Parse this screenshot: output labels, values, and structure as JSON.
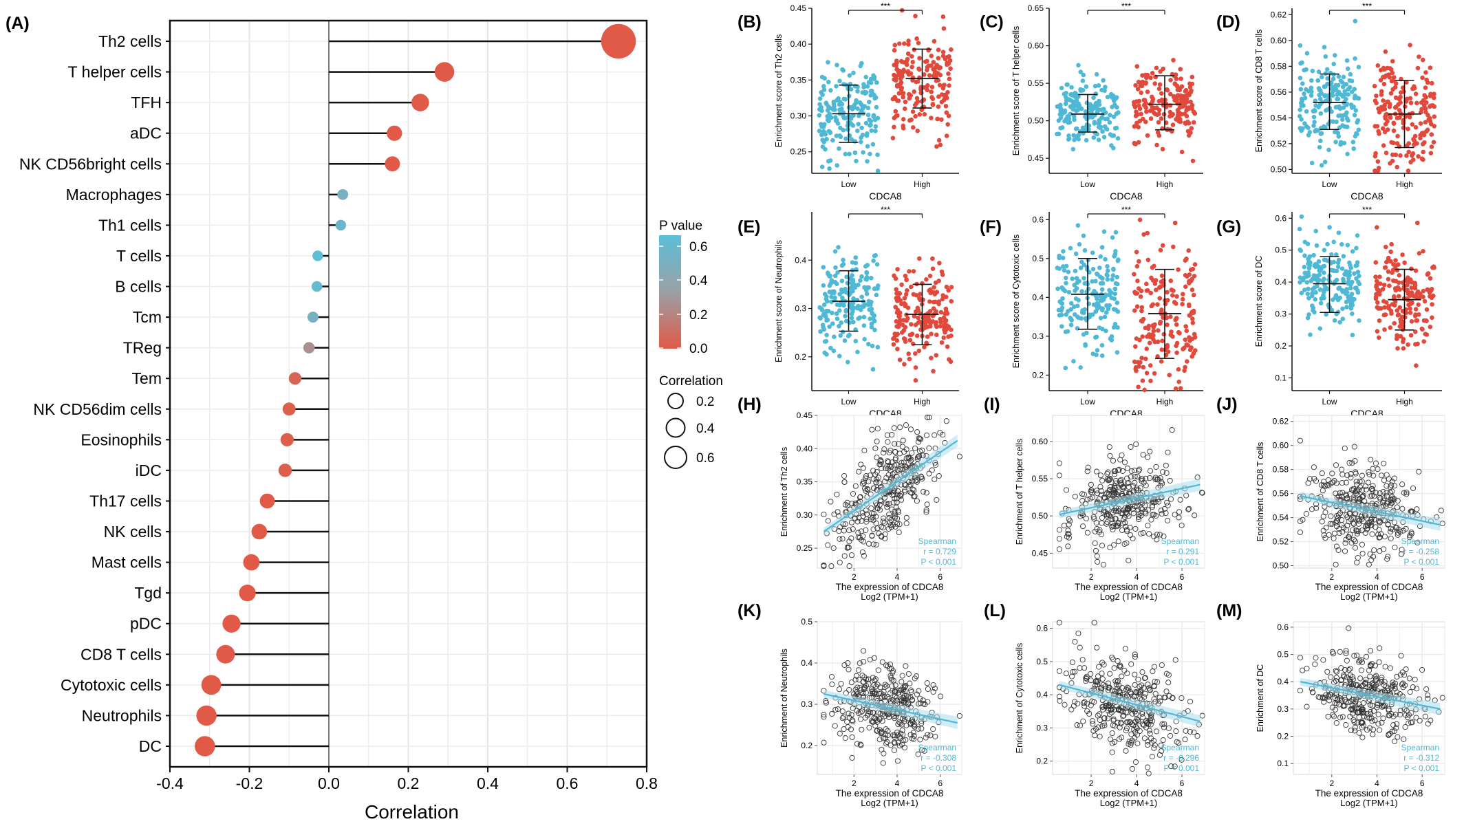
{
  "chart_data": [
    {
      "panel": "(A)",
      "type": "scatter",
      "subtype": "lollipop",
      "xlabel": "Correlation",
      "xlim": [
        -0.4,
        0.8
      ],
      "xticks": [
        -0.4,
        -0.2,
        0.0,
        0.2,
        0.4,
        0.6,
        0.8
      ],
      "xtick_labels": [
        "-0.4",
        "-0.2",
        "0.0",
        "0.2",
        "0.4",
        "0.6",
        "0.8"
      ],
      "categories": [
        "Th2 cells",
        "T helper cells",
        "TFH",
        "aDC",
        "NK CD56bright cells",
        "Macrophages",
        "Th1 cells",
        "T cells",
        "B cells",
        "Tcm",
        "TReg",
        "Tem",
        "NK CD56dim cells",
        "Eosinophils",
        "iDC",
        "Th17 cells",
        "NK cells",
        "Mast cells",
        "Tgd",
        "pDC",
        "CD8 T cells",
        "Cytotoxic cells",
        "Neutrophils",
        "DC"
      ],
      "values": [
        0.729,
        0.291,
        0.23,
        0.165,
        0.16,
        0.035,
        0.03,
        -0.028,
        -0.03,
        -0.04,
        -0.05,
        -0.085,
        -0.1,
        -0.105,
        -0.11,
        -0.155,
        -0.175,
        -0.195,
        -0.205,
        -0.245,
        -0.26,
        -0.296,
        -0.308,
        -0.312
      ],
      "p_values": [
        0.0,
        0.0,
        0.0,
        0.0,
        0.0,
        0.5,
        0.55,
        0.64,
        0.6,
        0.5,
        0.25,
        0.05,
        0.02,
        0.02,
        0.02,
        0.0,
        0.0,
        0.0,
        0.0,
        0.0,
        0.0,
        0.0,
        0.0,
        0.0
      ],
      "legend_pvalue": {
        "title": "P value",
        "tick_labels": [
          "0.6",
          "0.4",
          "0.2",
          "0.0"
        ],
        "colors": [
          "#5bbfd8",
          "#9aa0a6",
          "#e05a47"
        ]
      },
      "legend_size": {
        "title": "Correlation",
        "labels": [
          "0.2",
          "0.4",
          "0.6"
        ]
      }
    },
    {
      "panel": "(B)",
      "type": "scatter",
      "subtype": "group_scatter",
      "ylabel": "Enrichment score of Th2 cells",
      "xlabel": "CDCA8",
      "ylim": [
        0.22,
        0.45
      ],
      "yticks": [
        0.25,
        0.3,
        0.35,
        0.4,
        0.45
      ],
      "ytick_labels": [
        "0.25",
        "0.30",
        "0.35",
        "0.40",
        "0.45"
      ],
      "groups": [
        "Low",
        "High"
      ],
      "significance": "***",
      "series": [
        {
          "name": "Low",
          "color": "#4fb8d4",
          "mean": 0.303,
          "sd_low": 0.263,
          "sd_high": 0.343,
          "spread": 0.033
        },
        {
          "name": "High",
          "color": "#e0493b",
          "mean": 0.352,
          "sd_low": 0.311,
          "sd_high": 0.393,
          "spread": 0.034
        }
      ]
    },
    {
      "panel": "(C)",
      "type": "scatter",
      "subtype": "group_scatter",
      "ylabel": "Enrichment score of T helper cells",
      "xlabel": "CDCA8",
      "ylim": [
        0.43,
        0.65
      ],
      "yticks": [
        0.45,
        0.5,
        0.55,
        0.6,
        0.65
      ],
      "ytick_labels": [
        "0.45",
        "0.50",
        "0.55",
        "0.60",
        "0.65"
      ],
      "groups": [
        "Low",
        "High"
      ],
      "significance": "***",
      "series": [
        {
          "name": "Low",
          "color": "#4fb8d4",
          "mean": 0.509,
          "sd_low": 0.485,
          "sd_high": 0.535,
          "spread": 0.02
        },
        {
          "name": "High",
          "color": "#e0493b",
          "mean": 0.522,
          "sd_low": 0.488,
          "sd_high": 0.56,
          "spread": 0.028
        }
      ]
    },
    {
      "panel": "(D)",
      "type": "scatter",
      "subtype": "group_scatter",
      "ylabel": "Enrichment score of CD8 T cells",
      "xlabel": "CDCA8",
      "ylim": [
        0.497,
        0.625
      ],
      "yticks": [
        0.5,
        0.52,
        0.54,
        0.56,
        0.58,
        0.6,
        0.62
      ],
      "ytick_labels": [
        "0.50",
        "0.52",
        "0.54",
        "0.56",
        "0.58",
        "0.60",
        "0.62"
      ],
      "groups": [
        "Low",
        "High"
      ],
      "significance": "***",
      "series": [
        {
          "name": "Low",
          "color": "#4fb8d4",
          "mean": 0.552,
          "sd_low": 0.531,
          "sd_high": 0.574,
          "spread": 0.018
        },
        {
          "name": "High",
          "color": "#e0493b",
          "mean": 0.543,
          "sd_low": 0.517,
          "sd_high": 0.569,
          "spread": 0.021
        }
      ]
    },
    {
      "panel": "(E)",
      "type": "scatter",
      "subtype": "group_scatter",
      "ylabel": "Enrichment score of Neutrophils",
      "xlabel": "CDCA8",
      "ylim": [
        0.13,
        0.5
      ],
      "yticks": [
        0.2,
        0.3,
        0.4
      ],
      "ytick_labels": [
        "0.2",
        "0.3",
        "0.4"
      ],
      "groups": [
        "Low",
        "High"
      ],
      "significance": "***",
      "series": [
        {
          "name": "Low",
          "color": "#4fb8d4",
          "mean": 0.315,
          "sd_low": 0.253,
          "sd_high": 0.378,
          "spread": 0.05
        },
        {
          "name": "High",
          "color": "#e0493b",
          "mean": 0.288,
          "sd_low": 0.225,
          "sd_high": 0.35,
          "spread": 0.055
        }
      ]
    },
    {
      "panel": "(F)",
      "type": "scatter",
      "subtype": "group_scatter",
      "ylabel": "Enrichment score of Cytotoxic cells",
      "xlabel": "CDCA8",
      "ylim": [
        0.16,
        0.62
      ],
      "yticks": [
        0.2,
        0.3,
        0.4,
        0.5,
        0.6
      ],
      "ytick_labels": [
        "0.2",
        "0.3",
        "0.4",
        "0.5",
        "0.6"
      ],
      "groups": [
        "Low",
        "High"
      ],
      "significance": "***",
      "series": [
        {
          "name": "Low",
          "color": "#4fb8d4",
          "mean": 0.408,
          "sd_low": 0.318,
          "sd_high": 0.5,
          "spread": 0.075
        },
        {
          "name": "High",
          "color": "#e0493b",
          "mean": 0.358,
          "sd_low": 0.243,
          "sd_high": 0.472,
          "spread": 0.09
        }
      ]
    },
    {
      "panel": "(G)",
      "type": "scatter",
      "subtype": "group_scatter",
      "ylabel": "Enrichment score of DC",
      "xlabel": "CDCA8",
      "ylim": [
        0.06,
        0.62
      ],
      "yticks": [
        0.1,
        0.2,
        0.3,
        0.4,
        0.5,
        0.6
      ],
      "ytick_labels": [
        "0.1",
        "0.2",
        "0.3",
        "0.4",
        "0.5",
        "0.6"
      ],
      "groups": [
        "Low",
        "High"
      ],
      "significance": "***",
      "series": [
        {
          "name": "Low",
          "color": "#4fb8d4",
          "mean": 0.395,
          "sd_low": 0.305,
          "sd_high": 0.48,
          "spread": 0.07
        },
        {
          "name": "High",
          "color": "#e0493b",
          "mean": 0.345,
          "sd_low": 0.25,
          "sd_high": 0.44,
          "spread": 0.075
        }
      ]
    },
    {
      "panel": "(H)",
      "type": "scatter",
      "subtype": "correlation",
      "ylabel": "Enrichment of Th2 cells",
      "xlabel": "The expression of CDCA8",
      "xlabel2": "Log2 (TPM+1)",
      "xlim": [
        0.3,
        7.0
      ],
      "xticks": [
        2,
        4,
        6
      ],
      "xtick_labels": [
        "2",
        "4",
        "6"
      ],
      "ylim": [
        0.22,
        0.45
      ],
      "yticks": [
        0.25,
        0.3,
        0.35,
        0.4,
        0.45
      ],
      "ytick_labels": [
        "0.25",
        "0.30",
        "0.35",
        "0.40",
        "0.45"
      ],
      "fit": {
        "x": [
          0.6,
          6.8
        ],
        "y": [
          0.275,
          0.412
        ]
      },
      "noise": 0.035,
      "annotation": {
        "method": "Spearman",
        "r": "r = 0.729",
        "p": "P < 0.001"
      }
    },
    {
      "panel": "(I)",
      "type": "scatter",
      "subtype": "correlation",
      "ylabel": "Enrichment of T helper cells",
      "xlabel": "The expression of CDCA8",
      "xlabel2": "Log2 (TPM+1)",
      "xlim": [
        0.3,
        7.0
      ],
      "xticks": [
        2,
        4,
        6
      ],
      "xtick_labels": [
        "2",
        "4",
        "6"
      ],
      "ylim": [
        0.43,
        0.635
      ],
      "yticks": [
        0.45,
        0.5,
        0.55,
        0.6
      ],
      "ytick_labels": [
        "0.45",
        "0.50",
        "0.55",
        "0.60"
      ],
      "fit": {
        "x": [
          0.6,
          6.8
        ],
        "y": [
          0.502,
          0.542
        ]
      },
      "noise": 0.03,
      "annotation": {
        "method": "Spearman",
        "r": "r = 0.291",
        "p": "P < 0.001"
      }
    },
    {
      "panel": "(J)",
      "type": "scatter",
      "subtype": "correlation",
      "ylabel": "Enrichment of CD8 T cells",
      "xlabel": "The expression of CDCA8",
      "xlabel2": "Log2 (TPM+1)",
      "xlim": [
        0.3,
        7.0
      ],
      "xticks": [
        2,
        4,
        6
      ],
      "xtick_labels": [
        "2",
        "4",
        "6"
      ],
      "ylim": [
        0.498,
        0.625
      ],
      "yticks": [
        0.5,
        0.52,
        0.54,
        0.56,
        0.58,
        0.6,
        0.62
      ],
      "ytick_labels": [
        "0.50",
        "0.52",
        "0.54",
        "0.56",
        "0.58",
        "0.60",
        "0.62"
      ],
      "fit": {
        "x": [
          0.6,
          6.8
        ],
        "y": [
          0.558,
          0.534
        ]
      },
      "noise": 0.019,
      "annotation": {
        "method": "Spearman",
        "r": "r = -0.258",
        "p": "P < 0.001"
      }
    },
    {
      "panel": "(K)",
      "type": "scatter",
      "subtype": "correlation",
      "ylabel": "Enrichment of Neutrophils",
      "xlabel": "The expression of CDCA8",
      "xlabel2": "Log2 (TPM+1)",
      "xlim": [
        0.3,
        7.0
      ],
      "xticks": [
        2,
        4,
        6
      ],
      "xtick_labels": [
        "2",
        "4",
        "6"
      ],
      "ylim": [
        0.13,
        0.5
      ],
      "yticks": [
        0.2,
        0.3,
        0.4,
        0.5
      ],
      "ytick_labels": [
        "0.2",
        "0.3",
        "0.4",
        "0.5"
      ],
      "fit": {
        "x": [
          0.6,
          6.8
        ],
        "y": [
          0.325,
          0.255
        ]
      },
      "noise": 0.055,
      "annotation": {
        "method": "Spearman",
        "r": "r = -0.308",
        "p": "P < 0.001"
      }
    },
    {
      "panel": "(L)",
      "type": "scatter",
      "subtype": "correlation",
      "ylabel": "Enrichment of Cytotoxic cells",
      "xlabel": "The expression of CDCA8",
      "xlabel2": "Log2 (TPM+1)",
      "xlim": [
        0.3,
        7.0
      ],
      "xticks": [
        2,
        4,
        6
      ],
      "xtick_labels": [
        "2",
        "4",
        "6"
      ],
      "ylim": [
        0.16,
        0.62
      ],
      "yticks": [
        0.2,
        0.3,
        0.4,
        0.5,
        0.6
      ],
      "ytick_labels": [
        "0.2",
        "0.3",
        "0.4",
        "0.5",
        "0.6"
      ],
      "fit": {
        "x": [
          0.6,
          6.8
        ],
        "y": [
          0.43,
          0.32
        ]
      },
      "noise": 0.075,
      "annotation": {
        "method": "Spearman",
        "r": "r = -0.296",
        "p": "P < 0.001"
      }
    },
    {
      "panel": "(M)",
      "type": "scatter",
      "subtype": "correlation",
      "ylabel": "Enrichment of DC",
      "xlabel": "The expression of CDCA8",
      "xlabel2": "Log2 (TPM+1)",
      "xlim": [
        0.3,
        7.0
      ],
      "xticks": [
        2,
        4,
        6
      ],
      "xtick_labels": [
        "2",
        "4",
        "6"
      ],
      "ylim": [
        0.06,
        0.62
      ],
      "yticks": [
        0.1,
        0.2,
        0.3,
        0.4,
        0.5,
        0.6
      ],
      "ytick_labels": [
        "0.1",
        "0.2",
        "0.3",
        "0.4",
        "0.5",
        "0.6"
      ],
      "fit": {
        "x": [
          0.6,
          6.8
        ],
        "y": [
          0.4,
          0.3
        ]
      },
      "noise": 0.07,
      "annotation": {
        "method": "Spearman",
        "r": "r = -0.312",
        "p": "P < 0.001"
      }
    }
  ]
}
